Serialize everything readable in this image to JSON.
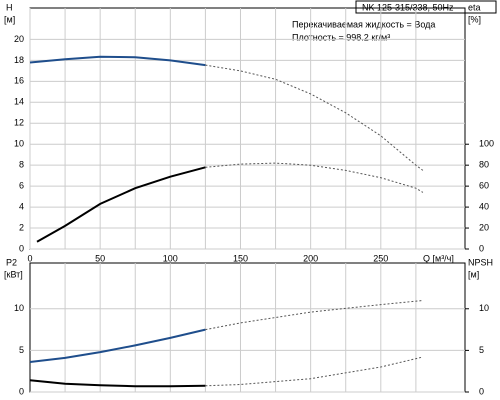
{
  "chart_data": [
    {
      "type": "line",
      "title": "NK 125-315/338, 50Hz",
      "annotations": [
        "Перекачиваемая жидкость = Вода",
        "Плотность = 998.2 кг/м³"
      ],
      "ylabel": "H",
      "yunit": "[м]",
      "y2label": "eta",
      "y2unit": "[%]",
      "xlabel": "Q [м³/ч]",
      "xlim": [
        0,
        310
      ],
      "xticks": [
        0,
        50,
        100,
        150,
        200,
        250
      ],
      "xminor": [
        25,
        75,
        125,
        175,
        225,
        275
      ],
      "ylim": [
        0,
        23
      ],
      "yticks": [
        0,
        2,
        4,
        6,
        8,
        10,
        12,
        14,
        16,
        18,
        20
      ],
      "y2lim": [
        0,
        230
      ],
      "y2ticks": [
        0,
        20,
        40,
        60,
        80,
        100
      ],
      "grid": true,
      "series": [
        {
          "color": "#1f4e8c",
          "dash": false,
          "x": [
            0,
            25,
            50,
            75,
            100,
            125
          ],
          "values": [
            17.8,
            18.1,
            18.35,
            18.3,
            18.0,
            17.55
          ]
        },
        {
          "color": "#555555",
          "dash": true,
          "x": [
            125,
            150,
            175,
            200,
            225,
            250,
            275,
            280
          ],
          "values": [
            17.55,
            17.0,
            16.2,
            14.8,
            13.0,
            10.8,
            8.0,
            7.5
          ]
        },
        {
          "color": "#000000",
          "dash": false,
          "axis": "y2",
          "x": [
            5,
            25,
            50,
            75,
            100,
            125
          ],
          "values": [
            7,
            22,
            43,
            58,
            69,
            78
          ]
        },
        {
          "color": "#555555",
          "dash": true,
          "axis": "y2",
          "x": [
            125,
            150,
            175,
            200,
            225,
            250,
            275,
            280
          ],
          "values": [
            78,
            81,
            82,
            80,
            75,
            68,
            58,
            54
          ]
        }
      ]
    },
    {
      "type": "line",
      "ylabel": "P2",
      "yunit": "[кВт]",
      "y2label": "NPSH",
      "y2unit": "[м]",
      "xlim": [
        0,
        310
      ],
      "xticks": [
        50,
        100,
        150,
        200,
        250
      ],
      "xminor": [
        25,
        75,
        125,
        175,
        225,
        275
      ],
      "ylim": [
        0,
        15.5
      ],
      "yticks": [
        0,
        5,
        10
      ],
      "y2lim": [
        0,
        15.5
      ],
      "y2ticks": [
        0,
        5,
        10
      ],
      "grid": true,
      "series": [
        {
          "color": "#1f4e8c",
          "dash": false,
          "x": [
            0,
            25,
            50,
            75,
            100,
            125
          ],
          "values": [
            3.6,
            4.1,
            4.8,
            5.6,
            6.5,
            7.5
          ]
        },
        {
          "color": "#555555",
          "dash": true,
          "x": [
            125,
            150,
            200,
            250,
            280
          ],
          "values": [
            7.5,
            8.3,
            9.6,
            10.5,
            11.0
          ]
        },
        {
          "color": "#000000",
          "dash": false,
          "axis": "y2",
          "x": [
            0,
            25,
            50,
            75,
            100,
            125
          ],
          "values": [
            1.4,
            1.0,
            0.8,
            0.7,
            0.7,
            0.75
          ]
        },
        {
          "color": "#555555",
          "dash": true,
          "axis": "y2",
          "x": [
            125,
            150,
            200,
            250,
            280
          ],
          "values": [
            0.75,
            0.9,
            1.6,
            3.0,
            4.2
          ]
        }
      ]
    }
  ]
}
